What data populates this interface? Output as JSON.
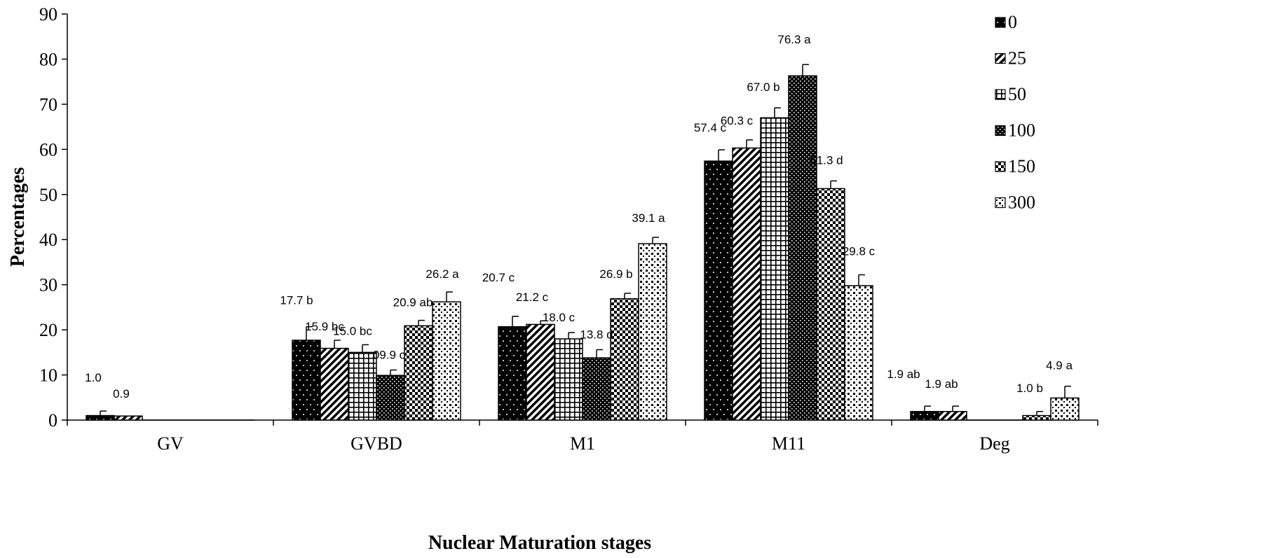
{
  "chart_data": {
    "type": "bar",
    "xlabel": "Nuclear  Maturation  stages",
    "ylabel": "Percentages",
    "ylim": [
      0,
      90
    ],
    "yticks": [
      0,
      10,
      20,
      30,
      40,
      50,
      60,
      70,
      80,
      90
    ],
    "grid": false,
    "legend": "top-right",
    "categories": [
      "GV",
      "GVBD",
      "M1",
      "M11",
      "Deg"
    ],
    "series": [
      {
        "name": "0",
        "pattern": "dots-on-black",
        "values": [
          1.0,
          17.7,
          20.7,
          57.4,
          1.9
        ],
        "errors": [
          1.0,
          3.0,
          2.3,
          2.5,
          1.2
        ],
        "labels": [
          "1.0",
          "17.7 b",
          "20.7 c",
          "57.4 c",
          "1.9 ab"
        ]
      },
      {
        "name": "25",
        "pattern": "diagonal-stripes",
        "values": [
          0.9,
          15.9,
          21.2,
          60.3,
          1.9
        ],
        "errors": [
          0,
          1.8,
          0.8,
          1.8,
          1.2
        ],
        "labels": [
          "0.9",
          "15.9 bc",
          "21.2 c",
          "60.3 c",
          "1.9 ab"
        ]
      },
      {
        "name": "50",
        "pattern": "grid",
        "values": [
          0,
          15.0,
          18.0,
          67.0,
          0
        ],
        "errors": [
          0,
          1.7,
          1.4,
          2.2,
          0
        ],
        "labels": [
          "",
          "15.0 bc",
          "18.0 c",
          "67.0 b",
          ""
        ]
      },
      {
        "name": "100",
        "pattern": "dense-dots",
        "values": [
          0,
          9.9,
          13.8,
          76.3,
          0
        ],
        "errors": [
          0,
          1.2,
          1.8,
          2.5,
          0
        ],
        "labels": [
          "",
          "09.9 c",
          "13.8 d",
          "76.3 a",
          ""
        ]
      },
      {
        "name": "150",
        "pattern": "checker",
        "values": [
          0,
          20.9,
          26.9,
          51.3,
          1.0
        ],
        "errors": [
          0,
          1.2,
          1.2,
          1.7,
          0.9
        ],
        "labels": [
          "",
          "20.9 ab",
          "26.9 b",
          "51.3 d",
          "1.0 b"
        ]
      },
      {
        "name": "300",
        "pattern": "sparse-squares",
        "values": [
          0,
          26.2,
          39.1,
          29.8,
          4.9
        ],
        "errors": [
          0,
          2.2,
          1.4,
          2.4,
          2.6
        ],
        "labels": [
          "",
          "26.2 a",
          "39.1 a",
          "29.8 c",
          "4.9 a"
        ]
      }
    ]
  }
}
